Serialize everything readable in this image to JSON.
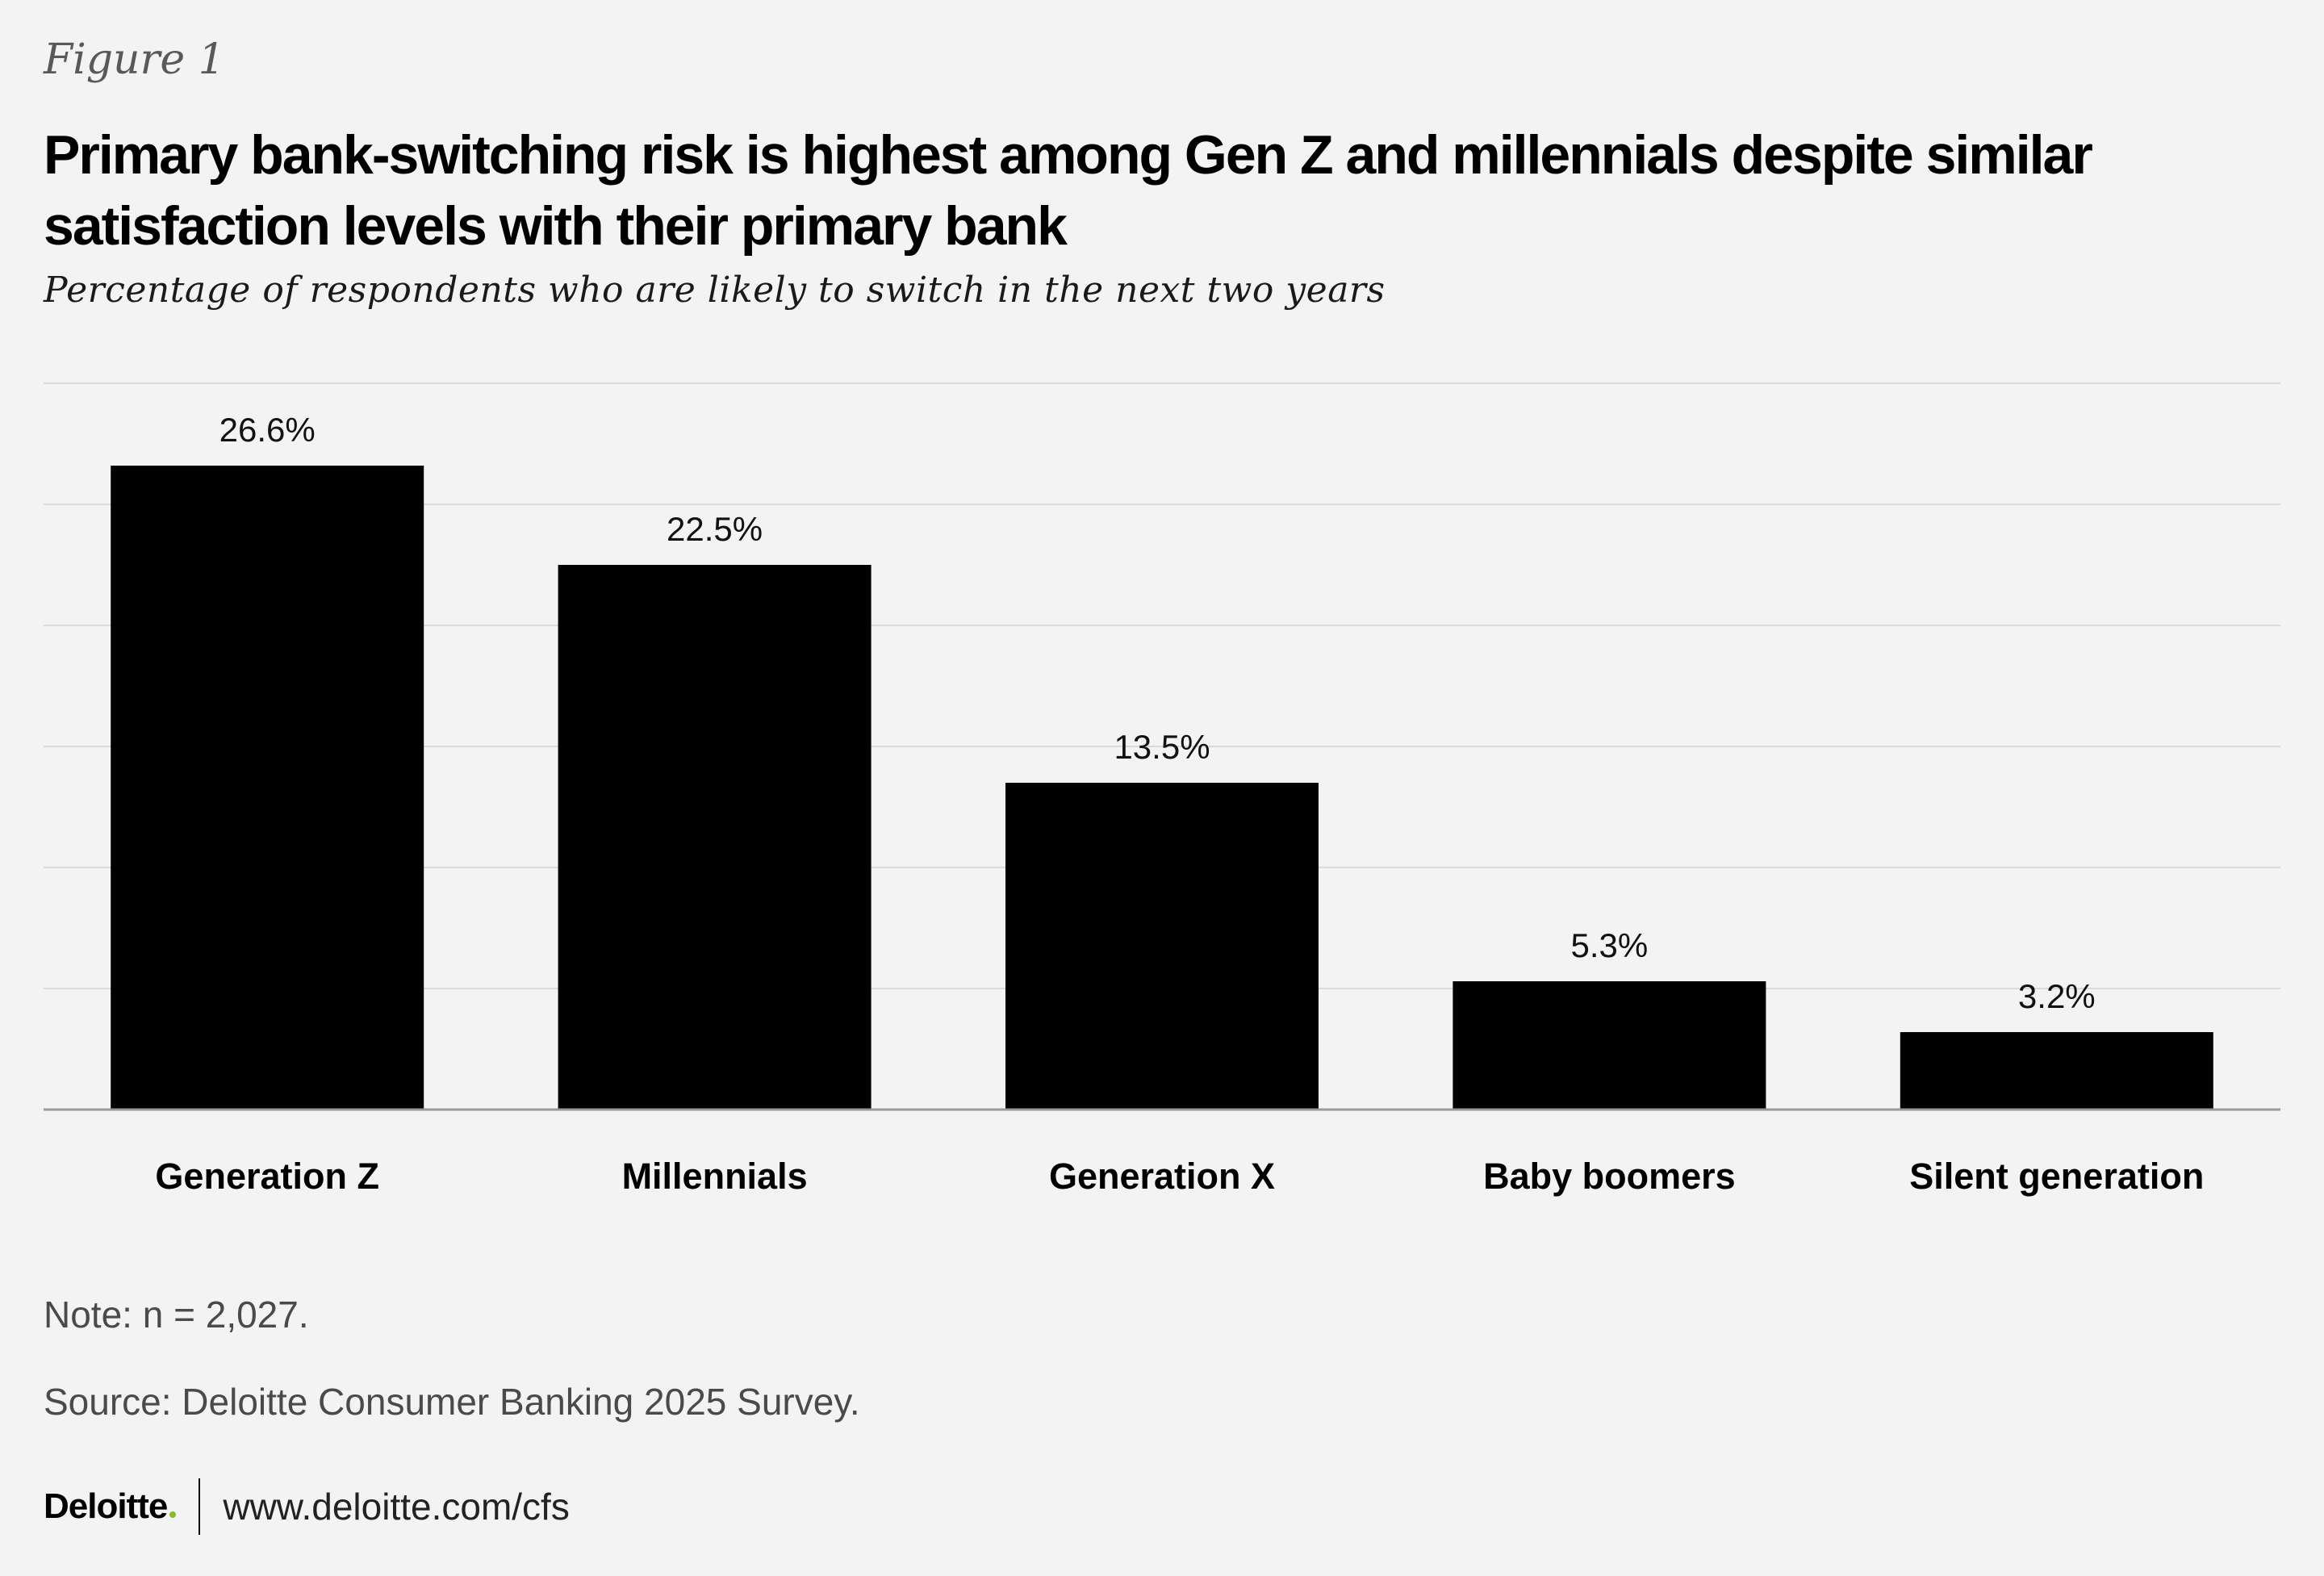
{
  "figure_label": "Figure 1",
  "chart_data": {
    "type": "bar",
    "title": "Primary bank-switching risk is highest among Gen Z and millennials despite similar satisfaction levels with their primary bank",
    "subtitle": "Percentage of respondents who are likely to switch in the next two years",
    "categories": [
      "Generation Z",
      "Millennials",
      "Generation X",
      "Baby boomers",
      "Silent generation"
    ],
    "values": [
      26.6,
      22.5,
      13.5,
      5.3,
      3.2
    ],
    "value_labels": [
      "26.6%",
      "22.5%",
      "13.5%",
      "5.3%",
      "3.2%"
    ],
    "ylim": [
      0,
      30
    ],
    "grid": true,
    "bar_color": "#000000",
    "xlabel": "",
    "ylabel": ""
  },
  "note": "Note: n = 2,027.",
  "source": "Source: Deloitte Consumer Banking 2025 Survey.",
  "footer": {
    "brand": "Deloitte",
    "brand_accent_color": "#86bc25",
    "url": "www.deloitte.com/cfs"
  }
}
